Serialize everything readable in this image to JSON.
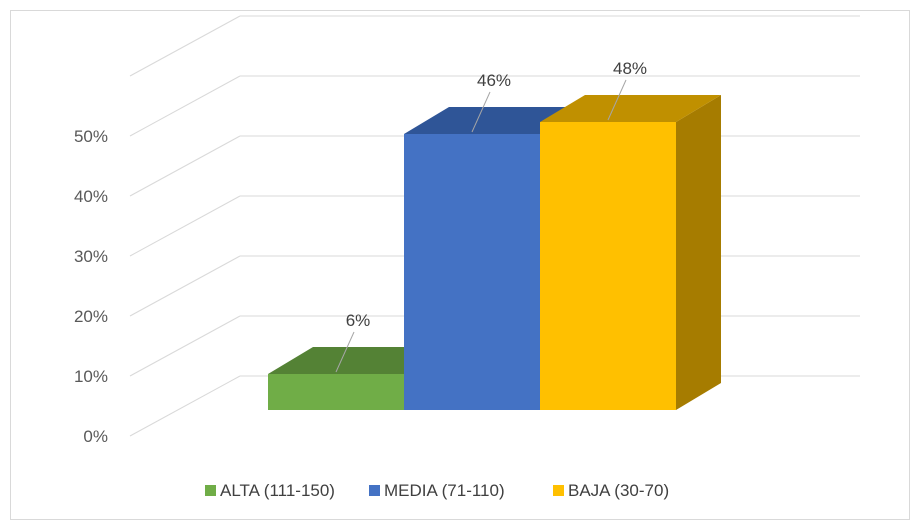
{
  "chart_data": {
    "type": "bar",
    "categories": [
      "ALTA (111-150)",
      "MEDIA (71-110)",
      "BAJA (30-70)"
    ],
    "values": [
      6,
      46,
      48
    ],
    "data_labels": [
      "6%",
      "46%",
      "48%"
    ],
    "colors": [
      "#70ad47",
      "#4472c4",
      "#ffc000"
    ],
    "side_colors": [
      "#4f7a32",
      "#2f5597",
      "#a67c00"
    ],
    "top_colors": [
      "#548235",
      "#2f5597",
      "#c09000"
    ],
    "y_ticks": [
      "0%",
      "10%",
      "20%",
      "30%",
      "40%",
      "50%"
    ],
    "ylim": [
      0,
      60
    ],
    "style": "3d-column",
    "grid": true,
    "legend_position": "bottom",
    "legend": [
      "ALTA (111-150)",
      "MEDIA (71-110)",
      "BAJA (30-70)"
    ]
  }
}
